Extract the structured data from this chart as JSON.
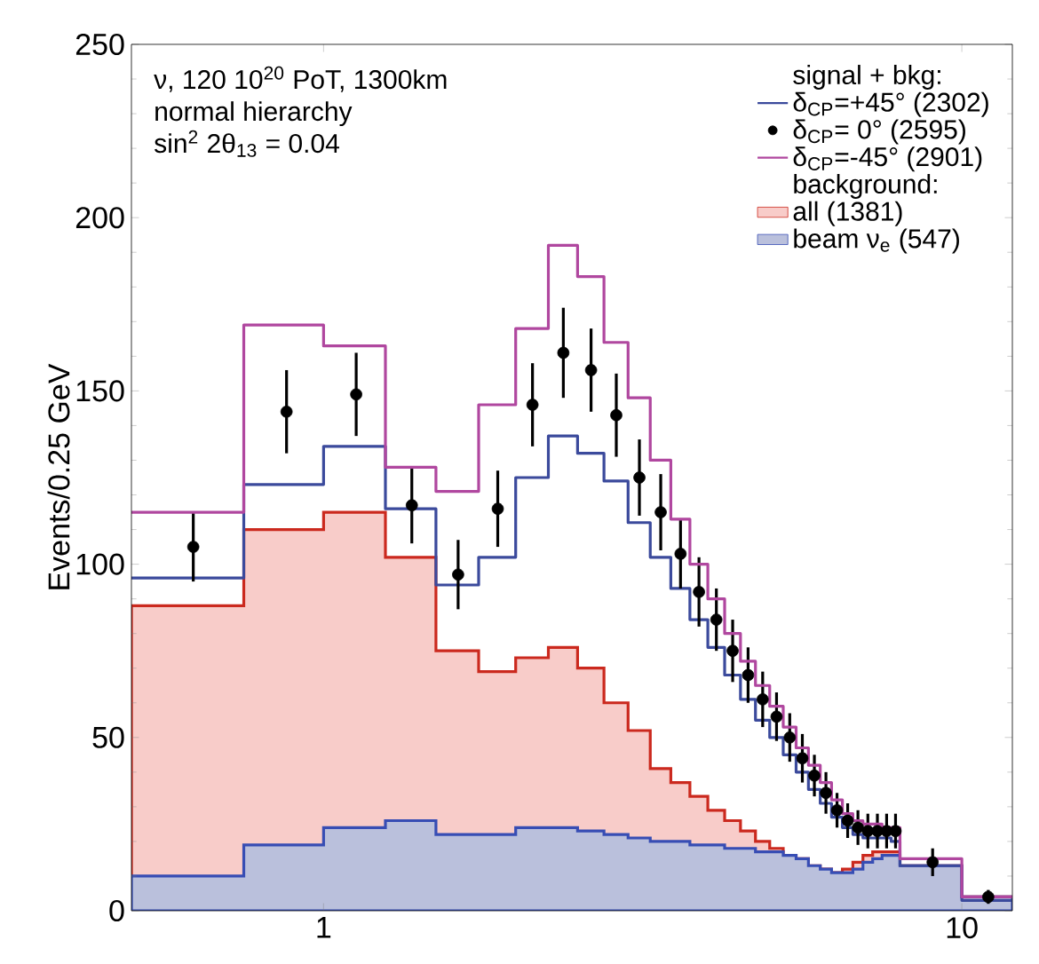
{
  "chart_data": {
    "type": "histogram",
    "ylabel": "Events/0.25 GeV",
    "legend_title": "signal + bkg:",
    "legend": "top right",
    "log": "x",
    "annotations": [
      "ν, 120 10$^{20}$ PoT, 1300km",
      "normal hierarchy",
      "sin$^{2}$ 2θ$_{13}$ = 0.04",
      "background:"
    ],
    "xlim": [
      0.5,
      12
    ],
    "xticks": [
      1,
      10
    ],
    "ylim": [
      0,
      250
    ],
    "yticks": [
      0,
      50,
      100,
      150,
      200,
      250
    ],
    "bins": [
      0.5,
      0.75,
      1,
      1.25,
      1.5,
      1.75,
      2,
      2.25,
      2.5,
      2.75,
      3,
      3.25,
      3.5,
      3.75,
      4,
      4.25,
      4.5,
      4.75,
      5,
      5.25,
      5.5,
      5.75,
      6,
      6.25,
      6.5,
      6.75,
      7,
      7.25,
      7.5,
      7.75,
      8,
      10,
      12
    ],
    "series": [
      {
        "name": "δ$_{CP}$=+45° (2302)",
        "type": "step",
        "color": "#3b4a9c",
        "x": [
          0.5,
          0.75,
          1,
          1.25,
          1.5,
          1.75,
          2,
          2.25,
          2.5,
          2.75,
          3,
          3.25,
          3.5,
          3.75,
          4,
          4.25,
          4.5,
          4.75,
          5,
          5.25,
          5.5,
          5.75,
          6,
          6.25,
          6.5,
          6.75,
          7,
          7.25,
          7.5,
          7.75,
          8,
          10
        ],
        "values": [
          96,
          123,
          134,
          116,
          94,
          102,
          125,
          137,
          132,
          124,
          112,
          102,
          93,
          84,
          76,
          68,
          61,
          55,
          50,
          45,
          40,
          35,
          31,
          27,
          24,
          22,
          21,
          21,
          21,
          20,
          13,
          3
        ]
      },
      {
        "name": "δ$_{CP}$= 0° (2595)",
        "type": "scatter",
        "color": "#000000",
        "x": [
          0.625,
          0.875,
          1.125,
          1.375,
          1.625,
          1.875,
          2.125,
          2.375,
          2.625,
          2.875,
          3.125,
          3.375,
          3.625,
          3.875,
          4.125,
          4.375,
          4.625,
          4.875,
          5.125,
          5.375,
          5.625,
          5.875,
          6.125,
          6.375,
          6.625,
          6.875,
          7.125,
          7.375,
          7.625,
          7.875,
          9,
          11
        ],
        "values": [
          105,
          144,
          149,
          117,
          97,
          116,
          146,
          161,
          156,
          143,
          125,
          115,
          103,
          92,
          84,
          75,
          68,
          61,
          56,
          50,
          44,
          39,
          34,
          29,
          26,
          24,
          23,
          23,
          23,
          23,
          14,
          4
        ],
        "errors": [
          10,
          12,
          12,
          11,
          10,
          11,
          12,
          13,
          12,
          12,
          11,
          11,
          10,
          10,
          9,
          9,
          8,
          8,
          7,
          7,
          7,
          6,
          6,
          5,
          5,
          5,
          5,
          5,
          5,
          5,
          4,
          2
        ]
      },
      {
        "name": "δ$_{CP}$=-45° (2901)",
        "type": "step",
        "color": "#b0479f",
        "x": [
          0.5,
          0.75,
          1,
          1.25,
          1.5,
          1.75,
          2,
          2.25,
          2.5,
          2.75,
          3,
          3.25,
          3.5,
          3.75,
          4,
          4.25,
          4.5,
          4.75,
          5,
          5.25,
          5.5,
          5.75,
          6,
          6.25,
          6.5,
          6.75,
          7,
          7.25,
          7.5,
          7.75,
          8,
          10
        ],
        "values": [
          115,
          169,
          163,
          128,
          121,
          146,
          168,
          192,
          183,
          164,
          148,
          130,
          113,
          100,
          90,
          80,
          72,
          65,
          59,
          53,
          47,
          42,
          37,
          32,
          28,
          26,
          25,
          25,
          24,
          24,
          15,
          4
        ]
      },
      {
        "name": "all (1381)",
        "color": "#f8ccc9",
        "values": [
          88,
          110,
          115,
          102,
          75,
          69,
          73,
          76,
          70,
          60,
          52,
          41,
          37,
          33,
          29,
          26,
          23,
          20,
          18,
          16,
          15,
          13,
          12,
          11,
          12,
          14,
          16,
          17,
          17,
          17,
          13,
          4
        ]
      },
      {
        "name": "beam ν$_{e}$ (547)",
        "color": "#bac0dc",
        "values": [
          10,
          19,
          24,
          26,
          22,
          22,
          24,
          24,
          23,
          22,
          21,
          20,
          20,
          19,
          19,
          18,
          18,
          17,
          17,
          16,
          15,
          13,
          12,
          11,
          11,
          12,
          14,
          15,
          16,
          16,
          13,
          4
        ]
      }
    ]
  }
}
